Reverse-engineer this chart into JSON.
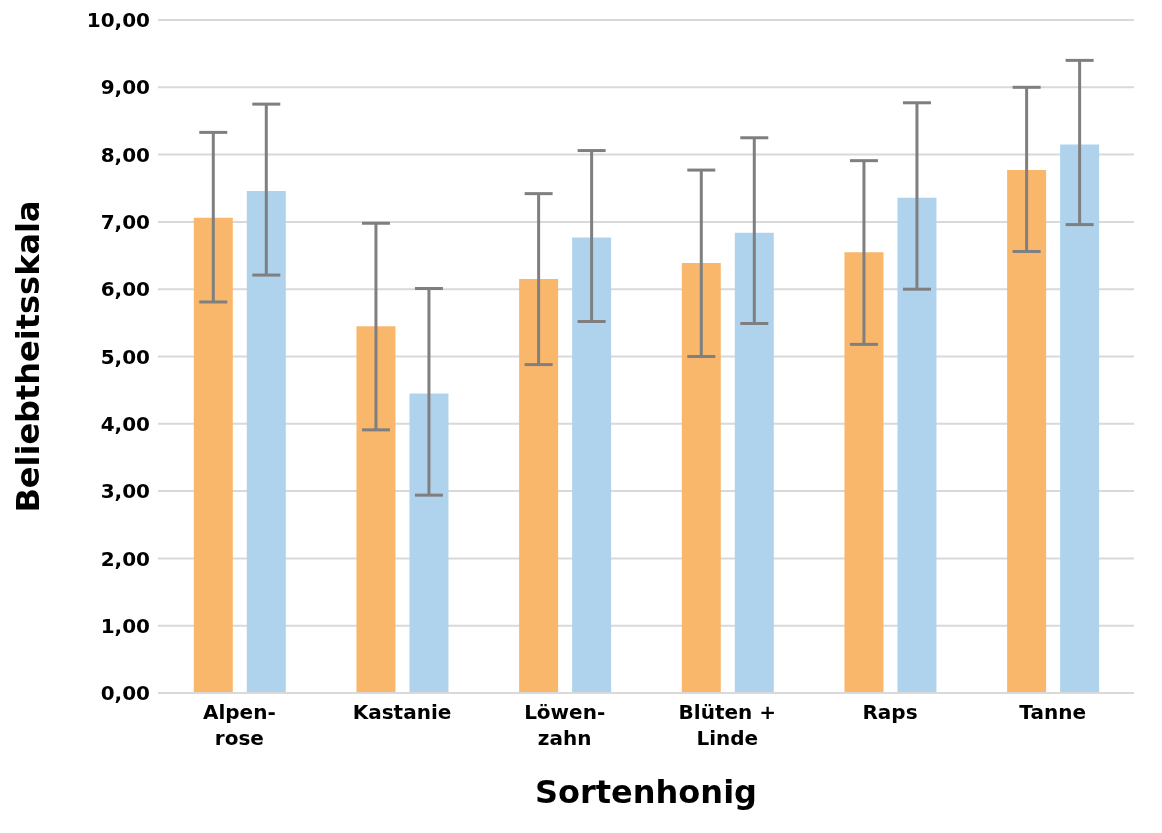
{
  "chart_data": {
    "type": "bar",
    "xlabel": "Sortenhonig",
    "ylabel": "Beliebtheitsskala",
    "categories": [
      "Alpen-\nrose",
      "Kastanie",
      "Löwen-\nzahn",
      "Blüten +\nLinde",
      "Raps",
      "Tanne"
    ],
    "series": [
      {
        "color": "#f9b76c",
        "values": [
          7.06,
          5.45,
          6.15,
          6.39,
          6.55,
          7.77
        ],
        "errors": [
          [
            5.81,
            8.33
          ],
          [
            3.91,
            6.98
          ],
          [
            4.88,
            7.42
          ],
          [
            5.0,
            7.77
          ],
          [
            5.18,
            7.91
          ],
          [
            6.56,
            9.0
          ]
        ]
      },
      {
        "color": "#afd3ec",
        "values": [
          7.46,
          4.45,
          6.77,
          6.84,
          7.36,
          8.15
        ],
        "errors": [
          [
            6.21,
            8.75
          ],
          [
            2.94,
            6.01
          ],
          [
            5.52,
            8.06
          ],
          [
            5.49,
            8.25
          ],
          [
            6.0,
            8.77
          ],
          [
            6.96,
            9.4
          ]
        ]
      }
    ],
    "ylim": [
      0,
      10
    ],
    "yticks": [
      {
        "value": 0,
        "label": "0,00"
      },
      {
        "value": 1,
        "label": "1,00"
      },
      {
        "value": 2,
        "label": "2,00"
      },
      {
        "value": 3,
        "label": "3,00"
      },
      {
        "value": 4,
        "label": "4,00"
      },
      {
        "value": 5,
        "label": "5,00"
      },
      {
        "value": 6,
        "label": "6,00"
      },
      {
        "value": 7,
        "label": "7,00"
      },
      {
        "value": 8,
        "label": "8,00"
      },
      {
        "value": 9,
        "label": "9,00"
      },
      {
        "value": 10,
        "label": "10,00"
      }
    ],
    "grid": "y",
    "legend": false
  }
}
